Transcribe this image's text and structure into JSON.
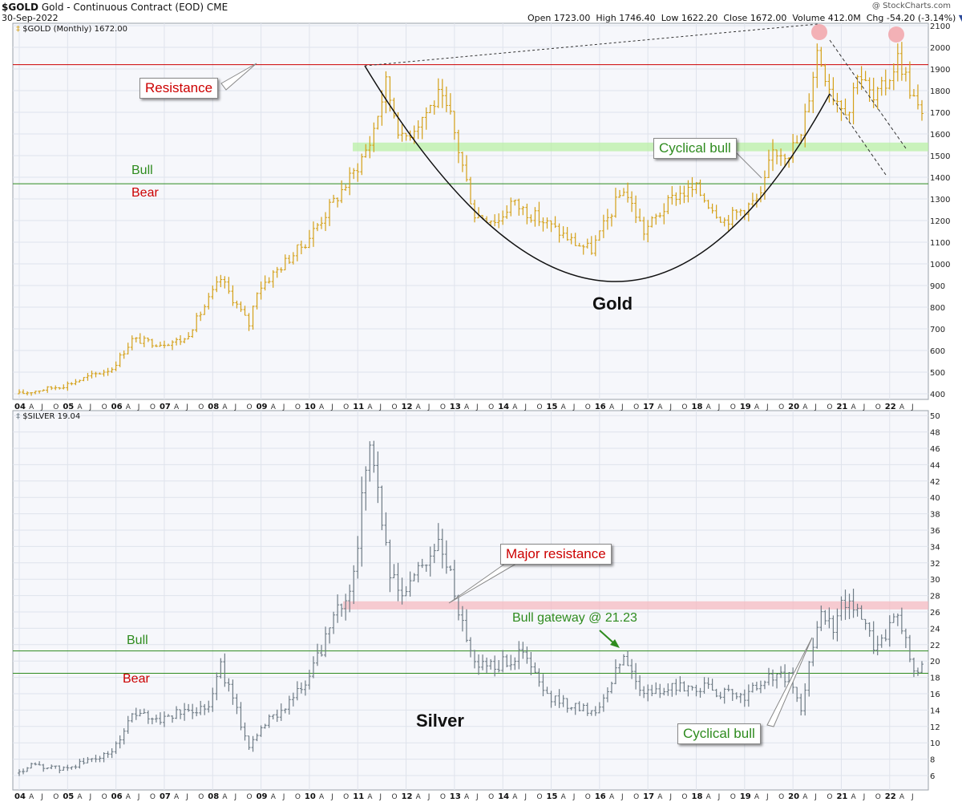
{
  "header": {
    "symbol": "$GOLD",
    "description": "Gold - Continuous Contract (EOD)",
    "exchange": "CME",
    "date": "30-Sep-2022",
    "watermark": "@ StockCharts.com",
    "quote": {
      "open_label": "Open",
      "open": "1723.00",
      "high_label": "High",
      "high": "1746.40",
      "low_label": "Low",
      "low": "1622.20",
      "close_label": "Close",
      "close": "1672.00",
      "volume_label": "Volume",
      "volume": "412.0M",
      "chg_label": "Chg",
      "chg": "-54.20 (-3.14%)"
    }
  },
  "colors": {
    "gold_bars": "#d4a017",
    "silver_bars": "#6e7b85",
    "resistance": "#cc0000",
    "bull_green": "#2e8b1e",
    "bear_red": "#cc0000",
    "zone_green": "#b6f0a0",
    "zone_pink": "#f7b6bd",
    "grid": "#dfe3ec",
    "panel_bg": "#f6f7fb"
  },
  "x_axis": {
    "years": [
      "04",
      "05",
      "06",
      "07",
      "08",
      "09",
      "10",
      "11",
      "12",
      "13",
      "14",
      "15",
      "16",
      "17",
      "18",
      "19",
      "20",
      "21",
      "22"
    ],
    "month_ticks": [
      "A",
      "J",
      "O"
    ]
  },
  "gold_panel": {
    "legend": "$GOLD (Monthly) 1672.00",
    "annotations": {
      "resistance": "Resistance",
      "bull": "Bull",
      "bear": "Bear",
      "cyclical_bull": "Cyclical bull",
      "name": "Gold"
    }
  },
  "silver_panel": {
    "legend": "$SILVER 19.04",
    "annotations": {
      "major_resistance": "Major resistance",
      "bull_gateway": "Bull gateway @ 21.23",
      "bull": "Bull",
      "bear": "Bear",
      "cyclical_bull": "Cyclical bull",
      "name": "Silver"
    }
  },
  "chart_data": [
    {
      "type": "ohlc",
      "title": "$GOLD (Monthly) 1672.00",
      "frequency": "monthly",
      "x_range": [
        "2004-01",
        "2022-09"
      ],
      "ylim": [
        350,
        2100
      ],
      "y_ticks": [
        400,
        500,
        600,
        700,
        800,
        900,
        1000,
        1100,
        1200,
        1300,
        1400,
        1500,
        1600,
        1700,
        1800,
        1900,
        2000,
        2100
      ],
      "reference_lines": [
        {
          "label": "Resistance",
          "value": 1920
        },
        {
          "label": "Bull/Bear",
          "value": 1370
        }
      ],
      "zones": [
        {
          "label": "Cyclical bull",
          "from": 1520,
          "to": 1560
        }
      ],
      "anchor_closes": [
        [
          "2004-01",
          400
        ],
        [
          "2004-12",
          438
        ],
        [
          "2005-12",
          517
        ],
        [
          "2006-05",
          650
        ],
        [
          "2006-12",
          632
        ],
        [
          "2007-06",
          650
        ],
        [
          "2007-12",
          834
        ],
        [
          "2008-03",
          930
        ],
        [
          "2008-10",
          720
        ],
        [
          "2008-12",
          880
        ],
        [
          "2009-12",
          1100
        ],
        [
          "2010-12",
          1420
        ],
        [
          "2011-04",
          1560
        ],
        [
          "2011-08",
          1830
        ],
        [
          "2011-12",
          1570
        ],
        [
          "2012-09",
          1770
        ],
        [
          "2012-12",
          1675
        ],
        [
          "2013-06",
          1230
        ],
        [
          "2013-12",
          1200
        ],
        [
          "2014-03",
          1285
        ],
        [
          "2014-12",
          1185
        ],
        [
          "2015-07",
          1095
        ],
        [
          "2015-11",
          1065
        ],
        [
          "2016-07",
          1350
        ],
        [
          "2016-12",
          1150
        ],
        [
          "2017-08",
          1320
        ],
        [
          "2018-01",
          1345
        ],
        [
          "2018-08",
          1200
        ],
        [
          "2019-05",
          1305
        ],
        [
          "2019-08",
          1520
        ],
        [
          "2019-12",
          1520
        ],
        [
          "2020-03",
          1580
        ],
        [
          "2020-07",
          1985
        ],
        [
          "2020-11",
          1780
        ],
        [
          "2021-03",
          1710
        ],
        [
          "2021-05",
          1900
        ],
        [
          "2021-09",
          1750
        ],
        [
          "2021-12",
          1830
        ],
        [
          "2022-03",
          1950
        ],
        [
          "2022-04",
          1915
        ],
        [
          "2022-06",
          1810
        ],
        [
          "2022-08",
          1715
        ],
        [
          "2022-09",
          1672
        ]
      ]
    },
    {
      "type": "ohlc",
      "title": "$SILVER 19.04",
      "frequency": "monthly",
      "x_range": [
        "2004-01",
        "2022-09"
      ],
      "ylim": [
        5,
        50
      ],
      "y_ticks": [
        6,
        8,
        10,
        12,
        14,
        16,
        18,
        20,
        22,
        24,
        26,
        28,
        30,
        32,
        34,
        36,
        38,
        40,
        42,
        44,
        46,
        48,
        50
      ],
      "reference_lines": [
        {
          "label": "Bull",
          "value": 21.23
        },
        {
          "label": "Bear",
          "value": 18.5
        }
      ],
      "zones": [
        {
          "label": "Major resistance",
          "from": 26.3,
          "to": 27.3
        }
      ],
      "anchor_closes": [
        [
          "2004-01",
          6.3
        ],
        [
          "2004-04",
          7.2
        ],
        [
          "2004-12",
          6.8
        ],
        [
          "2005-12",
          8.8
        ],
        [
          "2006-05",
          13.5
        ],
        [
          "2006-12",
          12.9
        ],
        [
          "2007-12",
          14.7
        ],
        [
          "2008-03",
          19.5
        ],
        [
          "2008-10",
          9.5
        ],
        [
          "2008-12",
          11.3
        ],
        [
          "2009-12",
          17.0
        ],
        [
          "2010-12",
          30.5
        ],
        [
          "2011-04",
          48.0
        ],
        [
          "2011-09",
          30.0
        ],
        [
          "2011-12",
          28.0
        ],
        [
          "2012-09",
          34.5
        ],
        [
          "2012-12",
          30.0
        ],
        [
          "2013-06",
          19.8
        ],
        [
          "2013-12",
          19.5
        ],
        [
          "2014-06",
          21.0
        ],
        [
          "2014-12",
          15.5
        ],
        [
          "2015-12",
          13.8
        ],
        [
          "2016-07",
          20.5
        ],
        [
          "2016-12",
          16.0
        ],
        [
          "2017-12",
          17.0
        ],
        [
          "2018-12",
          15.5
        ],
        [
          "2019-08",
          18.2
        ],
        [
          "2019-12",
          17.9
        ],
        [
          "2020-03",
          14.0
        ],
        [
          "2020-07",
          24.5
        ],
        [
          "2020-08",
          27.0
        ],
        [
          "2020-11",
          23.5
        ],
        [
          "2021-01",
          26.5
        ],
        [
          "2021-05",
          27.5
        ],
        [
          "2021-09",
          22.0
        ],
        [
          "2021-12",
          23.2
        ],
        [
          "2022-03",
          25.5
        ],
        [
          "2022-06",
          20.5
        ],
        [
          "2022-08",
          18.0
        ],
        [
          "2022-09",
          19.04
        ]
      ]
    }
  ]
}
